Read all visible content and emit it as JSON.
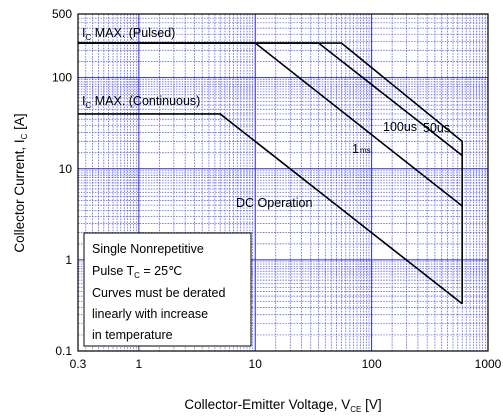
{
  "chart_data": {
    "type": "line",
    "title": "",
    "xscale": "log",
    "yscale": "log",
    "xlim": [
      0.3,
      1000
    ],
    "ylim": [
      0.1,
      500
    ],
    "grid": true,
    "xticks": [
      {
        "v": 0.3,
        "label": "0.3"
      },
      {
        "v": 1,
        "label": "1"
      },
      {
        "v": 10,
        "label": "10"
      },
      {
        "v": 100,
        "label": "100"
      },
      {
        "v": 1000,
        "label": "1000"
      }
    ],
    "yticks": [
      {
        "v": 0.1,
        "label": "0.1"
      },
      {
        "v": 1,
        "label": "1"
      },
      {
        "v": 10,
        "label": "10"
      },
      {
        "v": 100,
        "label": "100"
      },
      {
        "v": 500,
        "label": "500"
      }
    ],
    "xlabel": {
      "main": "Collector-Emitter  Voltage, V",
      "sub": "CE",
      "tail": " [V]"
    },
    "ylabel": {
      "main": "Collector Current, I",
      "sub": "C",
      "tail": " [A]"
    },
    "series": [
      {
        "id": "dc",
        "label": "DC Operation",
        "points": [
          [
            0.3,
            40
          ],
          [
            5,
            40
          ],
          [
            600,
            0.33
          ]
        ]
      },
      {
        "id": "1ms",
        "label": "1",
        "label_sub": "ms",
        "points": [
          [
            0.3,
            240
          ],
          [
            10,
            240
          ],
          [
            600,
            3.9
          ]
        ]
      },
      {
        "id": "100us",
        "label": "100us",
        "points": [
          [
            0.3,
            240
          ],
          [
            35,
            240
          ],
          [
            600,
            14
          ]
        ]
      },
      {
        "id": "50us",
        "label": "50us",
        "points": [
          [
            0.3,
            240
          ],
          [
            55,
            240
          ],
          [
            600,
            20
          ]
        ]
      },
      {
        "id": "vmax",
        "label": "",
        "points": [
          [
            600,
            0.33
          ],
          [
            600,
            20
          ]
        ]
      }
    ],
    "annotations": [
      {
        "id": "ic-pulsed",
        "main": "I",
        "sub": "C",
        "tail": " MAX. (Pulsed)"
      },
      {
        "id": "ic-cont",
        "main": "I",
        "sub": "C",
        "tail": " MAX. (Continuous)"
      }
    ],
    "notes": {
      "line1": "Single Nonrepetitive",
      "line2_main": "Pulse T",
      "line2_sub": "C",
      "line2_tail": " = 25℃",
      "line3": "Curves must be derated",
      "line4": "linearly with increase",
      "line5": "in temperature"
    }
  }
}
